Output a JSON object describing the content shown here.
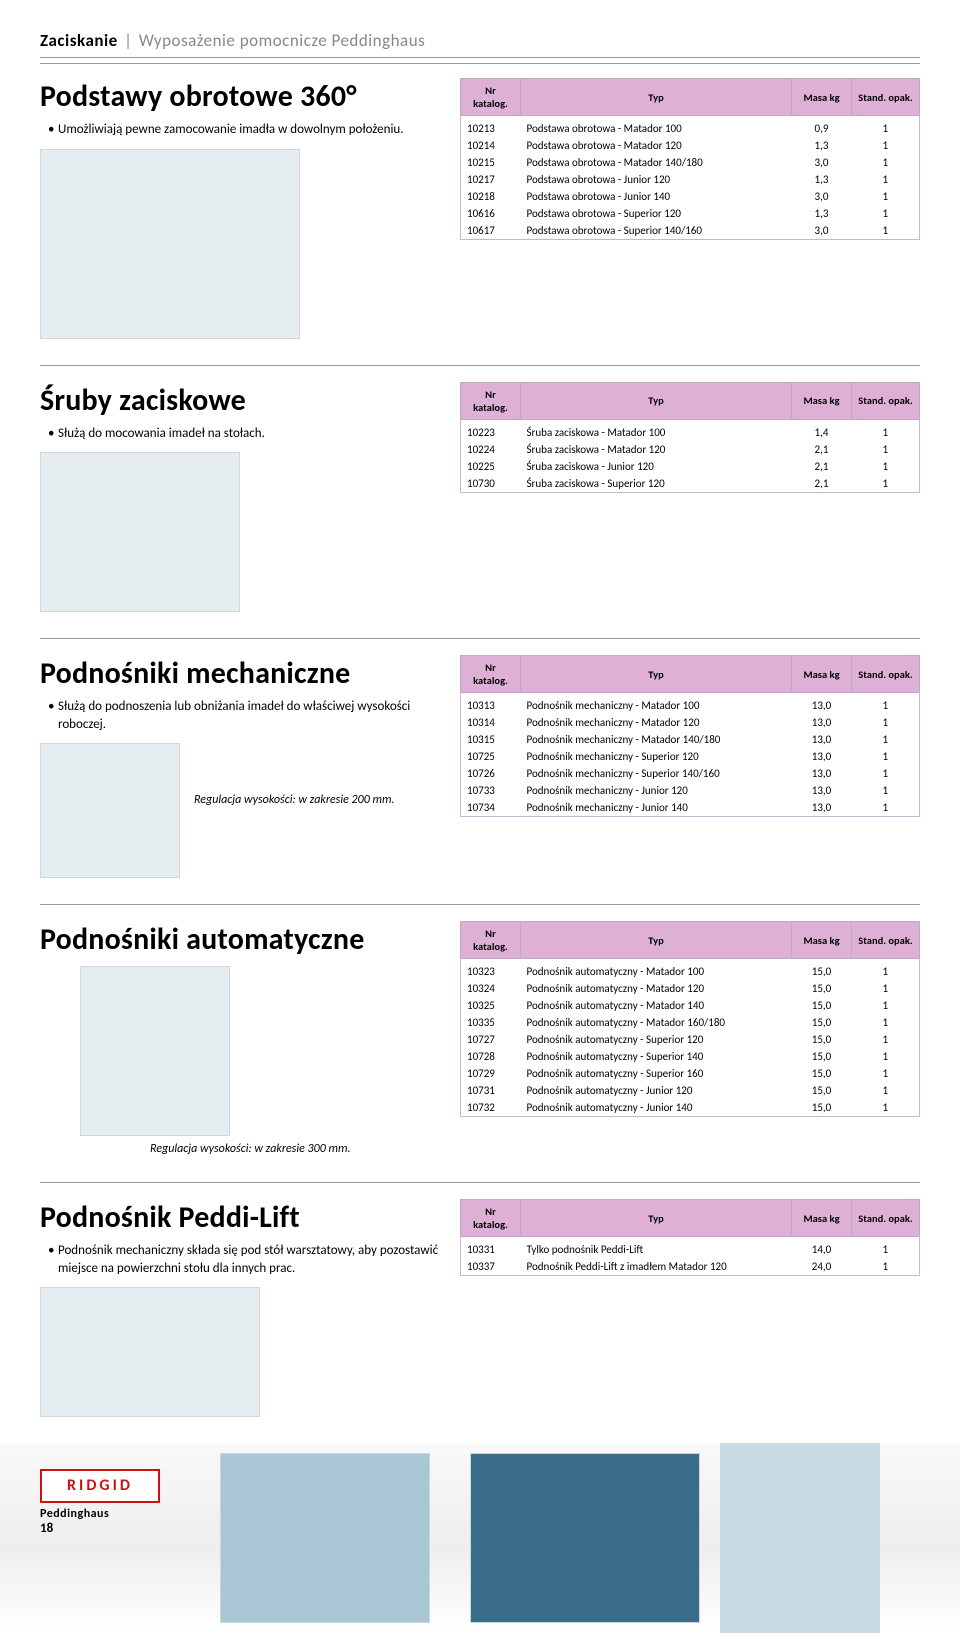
{
  "breadcrumb": {
    "main": "Zaciskanie",
    "sub": "Wyposażenie pomocnicze Peddinghaus"
  },
  "tableHeaders": {
    "nr": "Nr katalog.",
    "typ": "Typ",
    "masa": "Masa kg",
    "std": "Stand. opak."
  },
  "footer": {
    "ridgid": "RIDGID",
    "pedd": "Peddinghaus",
    "pageNum": "18"
  },
  "sections": [
    {
      "title": "Podstawy obrotowe 360°",
      "notes": [
        "Umożliwiają pewne zamocowanie imadła w dowolnym położeniu."
      ],
      "imgClass": "h190",
      "rows": [
        [
          "10213",
          "Podstawa obrotowa - Matador 100",
          "0,9",
          "1"
        ],
        [
          "10214",
          "Podstawa obrotowa - Matador 120",
          "1,3",
          "1"
        ],
        [
          "10215",
          "Podstawa obrotowa - Matador 140/180",
          "3,0",
          "1"
        ],
        [
          "10217",
          "Podstawa obrotowa - Junior 120",
          "1,3",
          "1"
        ],
        [
          "10218",
          "Podstawa obrotowa - Junior 140",
          "3,0",
          "1"
        ],
        [
          "10616",
          "Podstawa obrotowa - Superior 120",
          "1,3",
          "1"
        ],
        [
          "10617",
          "Podstawa obrotowa - Superior 140/160",
          "3,0",
          "1"
        ]
      ]
    },
    {
      "title": "Śruby zaciskowe",
      "notes": [
        "Służą do mocowania imadeł na stołach."
      ],
      "imgClass": "h160",
      "rows": [
        [
          "10223",
          "Śruba zaciskowa - Matador 100",
          "1,4",
          "1"
        ],
        [
          "10224",
          "Śruba zaciskowa - Matador 120",
          "2,1",
          "1"
        ],
        [
          "10225",
          "Śruba zaciskowa - Junior 120",
          "2,1",
          "1"
        ],
        [
          "10730",
          "Śruba zaciskowa - Superior 120",
          "2,1",
          "1"
        ]
      ]
    },
    {
      "title": "Podnośniki mechaniczne",
      "notes": [
        "Służą do podnoszenia lub obniżania imadeł do właściwej wysokości roboczej."
      ],
      "caption": "Regulacja wysokości: w zakresie 200 mm.",
      "layout": "mech",
      "rows": [
        [
          "10313",
          "Podnośnik mechaniczny - Matador 100",
          "13,0",
          "1"
        ],
        [
          "10314",
          "Podnośnik mechaniczny - Matador 120",
          "13,0",
          "1"
        ],
        [
          "10315",
          "Podnośnik mechaniczny - Matador 140/180",
          "13,0",
          "1"
        ],
        [
          "10725",
          "Podnośnik mechaniczny - Superior 120",
          "13,0",
          "1"
        ],
        [
          "10726",
          "Podnośnik mechaniczny - Superior 140/160",
          "13,0",
          "1"
        ],
        [
          "10733",
          "Podnośnik mechaniczny - Junior 120",
          "13,0",
          "1"
        ],
        [
          "10734",
          "Podnośnik mechaniczny - Junior 140",
          "13,0",
          "1"
        ]
      ]
    },
    {
      "title": "Podnośniki automatyczne",
      "notes": [],
      "caption": "Regulacja wysokości: w zakresie 300 mm.",
      "layout": "auto",
      "imgClass": "h180",
      "rows": [
        [
          "10323",
          "Podnośnik automatyczny - Matador 100",
          "15,0",
          "1"
        ],
        [
          "10324",
          "Podnośnik automatyczny - Matador 120",
          "15,0",
          "1"
        ],
        [
          "10325",
          "Podnośnik automatyczny - Matador 140",
          "15,0",
          "1"
        ],
        [
          "10335",
          "Podnośnik automatyczny - Matador 160/180",
          "15,0",
          "1"
        ],
        [
          "10727",
          "Podnośnik automatyczny - Superior 120",
          "15,0",
          "1"
        ],
        [
          "10728",
          "Podnośnik automatyczny - Superior 140",
          "15,0",
          "1"
        ],
        [
          "10729",
          "Podnośnik automatyczny - Superior 160",
          "15,0",
          "1"
        ],
        [
          "10731",
          "Podnośnik automatyczny - Junior 120",
          "15,0",
          "1"
        ],
        [
          "10732",
          "Podnośnik automatyczny - Junior 140",
          "15,0",
          "1"
        ]
      ]
    },
    {
      "title": "Podnośnik Peddi-Lift",
      "notes": [
        "Podnośnik mechaniczny składa się pod stół warsztatowy, aby pozostawić miejsce na powierzchni stołu dla innych prac."
      ],
      "imgClass": "h150",
      "rows": [
        [
          "10331",
          "Tylko podnośnik Peddi-Lift",
          "14,0",
          "1"
        ],
        [
          "10337",
          "Podnośnik Peddi-Lift z imadłem Matador 120",
          "24,0",
          "1"
        ]
      ]
    }
  ],
  "style": {
    "headerBg": "#dfb0d6",
    "headerBorder": "#bfa8c9"
  }
}
